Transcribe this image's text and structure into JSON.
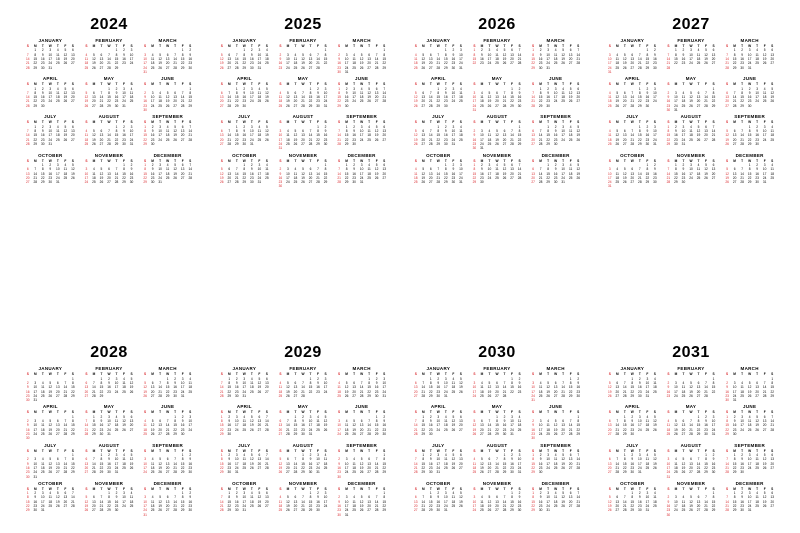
{
  "background_color": "#ffffff",
  "text_color": "#000000",
  "sunday_color": "#d9262b",
  "week_start": "sunday",
  "day_letters": [
    "S",
    "M",
    "T",
    "W",
    "T",
    "F",
    "S"
  ],
  "month_names": [
    "JANUARY",
    "FEBRUARY",
    "MARCH",
    "APRIL",
    "MAY",
    "JUNE",
    "JULY",
    "AUGUST",
    "SEPTEMBER",
    "OCTOBER",
    "NOVEMBER",
    "DECEMBER"
  ],
  "year_title_fontsize": 16,
  "month_name_fontsize": 4.5,
  "cell_fontsize": 3.2,
  "layout": {
    "year_rows": 2,
    "year_cols": 4,
    "month_rows": 4,
    "month_cols": 3
  },
  "years": [
    {
      "year": 2024,
      "months": [
        {
          "first_dow": 1,
          "days": 31
        },
        {
          "first_dow": 4,
          "days": 29
        },
        {
          "first_dow": 5,
          "days": 31
        },
        {
          "first_dow": 1,
          "days": 30
        },
        {
          "first_dow": 3,
          "days": 31
        },
        {
          "first_dow": 6,
          "days": 30
        },
        {
          "first_dow": 1,
          "days": 31
        },
        {
          "first_dow": 4,
          "days": 31
        },
        {
          "first_dow": 0,
          "days": 30
        },
        {
          "first_dow": 2,
          "days": 31
        },
        {
          "first_dow": 5,
          "days": 30
        },
        {
          "first_dow": 0,
          "days": 31
        }
      ]
    },
    {
      "year": 2025,
      "months": [
        {
          "first_dow": 3,
          "days": 31
        },
        {
          "first_dow": 6,
          "days": 28
        },
        {
          "first_dow": 6,
          "days": 31
        },
        {
          "first_dow": 2,
          "days": 30
        },
        {
          "first_dow": 4,
          "days": 31
        },
        {
          "first_dow": 0,
          "days": 30
        },
        {
          "first_dow": 2,
          "days": 31
        },
        {
          "first_dow": 5,
          "days": 31
        },
        {
          "first_dow": 1,
          "days": 30
        },
        {
          "first_dow": 3,
          "days": 31
        },
        {
          "first_dow": 6,
          "days": 30
        },
        {
          "first_dow": 1,
          "days": 31
        }
      ]
    },
    {
      "year": 2026,
      "months": [
        {
          "first_dow": 4,
          "days": 31
        },
        {
          "first_dow": 0,
          "days": 28
        },
        {
          "first_dow": 0,
          "days": 31
        },
        {
          "first_dow": 3,
          "days": 30
        },
        {
          "first_dow": 5,
          "days": 31
        },
        {
          "first_dow": 1,
          "days": 30
        },
        {
          "first_dow": 3,
          "days": 31
        },
        {
          "first_dow": 6,
          "days": 31
        },
        {
          "first_dow": 2,
          "days": 30
        },
        {
          "first_dow": 4,
          "days": 31
        },
        {
          "first_dow": 0,
          "days": 30
        },
        {
          "first_dow": 2,
          "days": 31
        }
      ]
    },
    {
      "year": 2027,
      "months": [
        {
          "first_dow": 5,
          "days": 31
        },
        {
          "first_dow": 1,
          "days": 28
        },
        {
          "first_dow": 1,
          "days": 31
        },
        {
          "first_dow": 4,
          "days": 30
        },
        {
          "first_dow": 6,
          "days": 31
        },
        {
          "first_dow": 2,
          "days": 30
        },
        {
          "first_dow": 4,
          "days": 31
        },
        {
          "first_dow": 0,
          "days": 31
        },
        {
          "first_dow": 3,
          "days": 30
        },
        {
          "first_dow": 5,
          "days": 31
        },
        {
          "first_dow": 1,
          "days": 30
        },
        {
          "first_dow": 3,
          "days": 31
        }
      ]
    },
    {
      "year": 2028,
      "months": [
        {
          "first_dow": 6,
          "days": 31
        },
        {
          "first_dow": 2,
          "days": 29
        },
        {
          "first_dow": 3,
          "days": 31
        },
        {
          "first_dow": 6,
          "days": 30
        },
        {
          "first_dow": 1,
          "days": 31
        },
        {
          "first_dow": 4,
          "days": 30
        },
        {
          "first_dow": 6,
          "days": 31
        },
        {
          "first_dow": 2,
          "days": 31
        },
        {
          "first_dow": 5,
          "days": 30
        },
        {
          "first_dow": 0,
          "days": 31
        },
        {
          "first_dow": 3,
          "days": 30
        },
        {
          "first_dow": 5,
          "days": 31
        }
      ]
    },
    {
      "year": 2029,
      "months": [
        {
          "first_dow": 1,
          "days": 31
        },
        {
          "first_dow": 4,
          "days": 28
        },
        {
          "first_dow": 4,
          "days": 31
        },
        {
          "first_dow": 0,
          "days": 30
        },
        {
          "first_dow": 2,
          "days": 31
        },
        {
          "first_dow": 5,
          "days": 30
        },
        {
          "first_dow": 0,
          "days": 31
        },
        {
          "first_dow": 3,
          "days": 31
        },
        {
          "first_dow": 6,
          "days": 30
        },
        {
          "first_dow": 1,
          "days": 31
        },
        {
          "first_dow": 4,
          "days": 30
        },
        {
          "first_dow": 6,
          "days": 31
        }
      ]
    },
    {
      "year": 2030,
      "months": [
        {
          "first_dow": 2,
          "days": 31
        },
        {
          "first_dow": 5,
          "days": 28
        },
        {
          "first_dow": 5,
          "days": 31
        },
        {
          "first_dow": 1,
          "days": 30
        },
        {
          "first_dow": 3,
          "days": 31
        },
        {
          "first_dow": 6,
          "days": 30
        },
        {
          "first_dow": 1,
          "days": 31
        },
        {
          "first_dow": 4,
          "days": 31
        },
        {
          "first_dow": 0,
          "days": 30
        },
        {
          "first_dow": 2,
          "days": 31
        },
        {
          "first_dow": 5,
          "days": 30
        },
        {
          "first_dow": 0,
          "days": 31
        }
      ]
    },
    {
      "year": 2031,
      "months": [
        {
          "first_dow": 3,
          "days": 31
        },
        {
          "first_dow": 6,
          "days": 28
        },
        {
          "first_dow": 6,
          "days": 31
        },
        {
          "first_dow": 2,
          "days": 30
        },
        {
          "first_dow": 4,
          "days": 31
        },
        {
          "first_dow": 0,
          "days": 30
        },
        {
          "first_dow": 2,
          "days": 31
        },
        {
          "first_dow": 5,
          "days": 31
        },
        {
          "first_dow": 1,
          "days": 30
        },
        {
          "first_dow": 3,
          "days": 31
        },
        {
          "first_dow": 6,
          "days": 30
        },
        {
          "first_dow": 1,
          "days": 31
        }
      ]
    }
  ]
}
